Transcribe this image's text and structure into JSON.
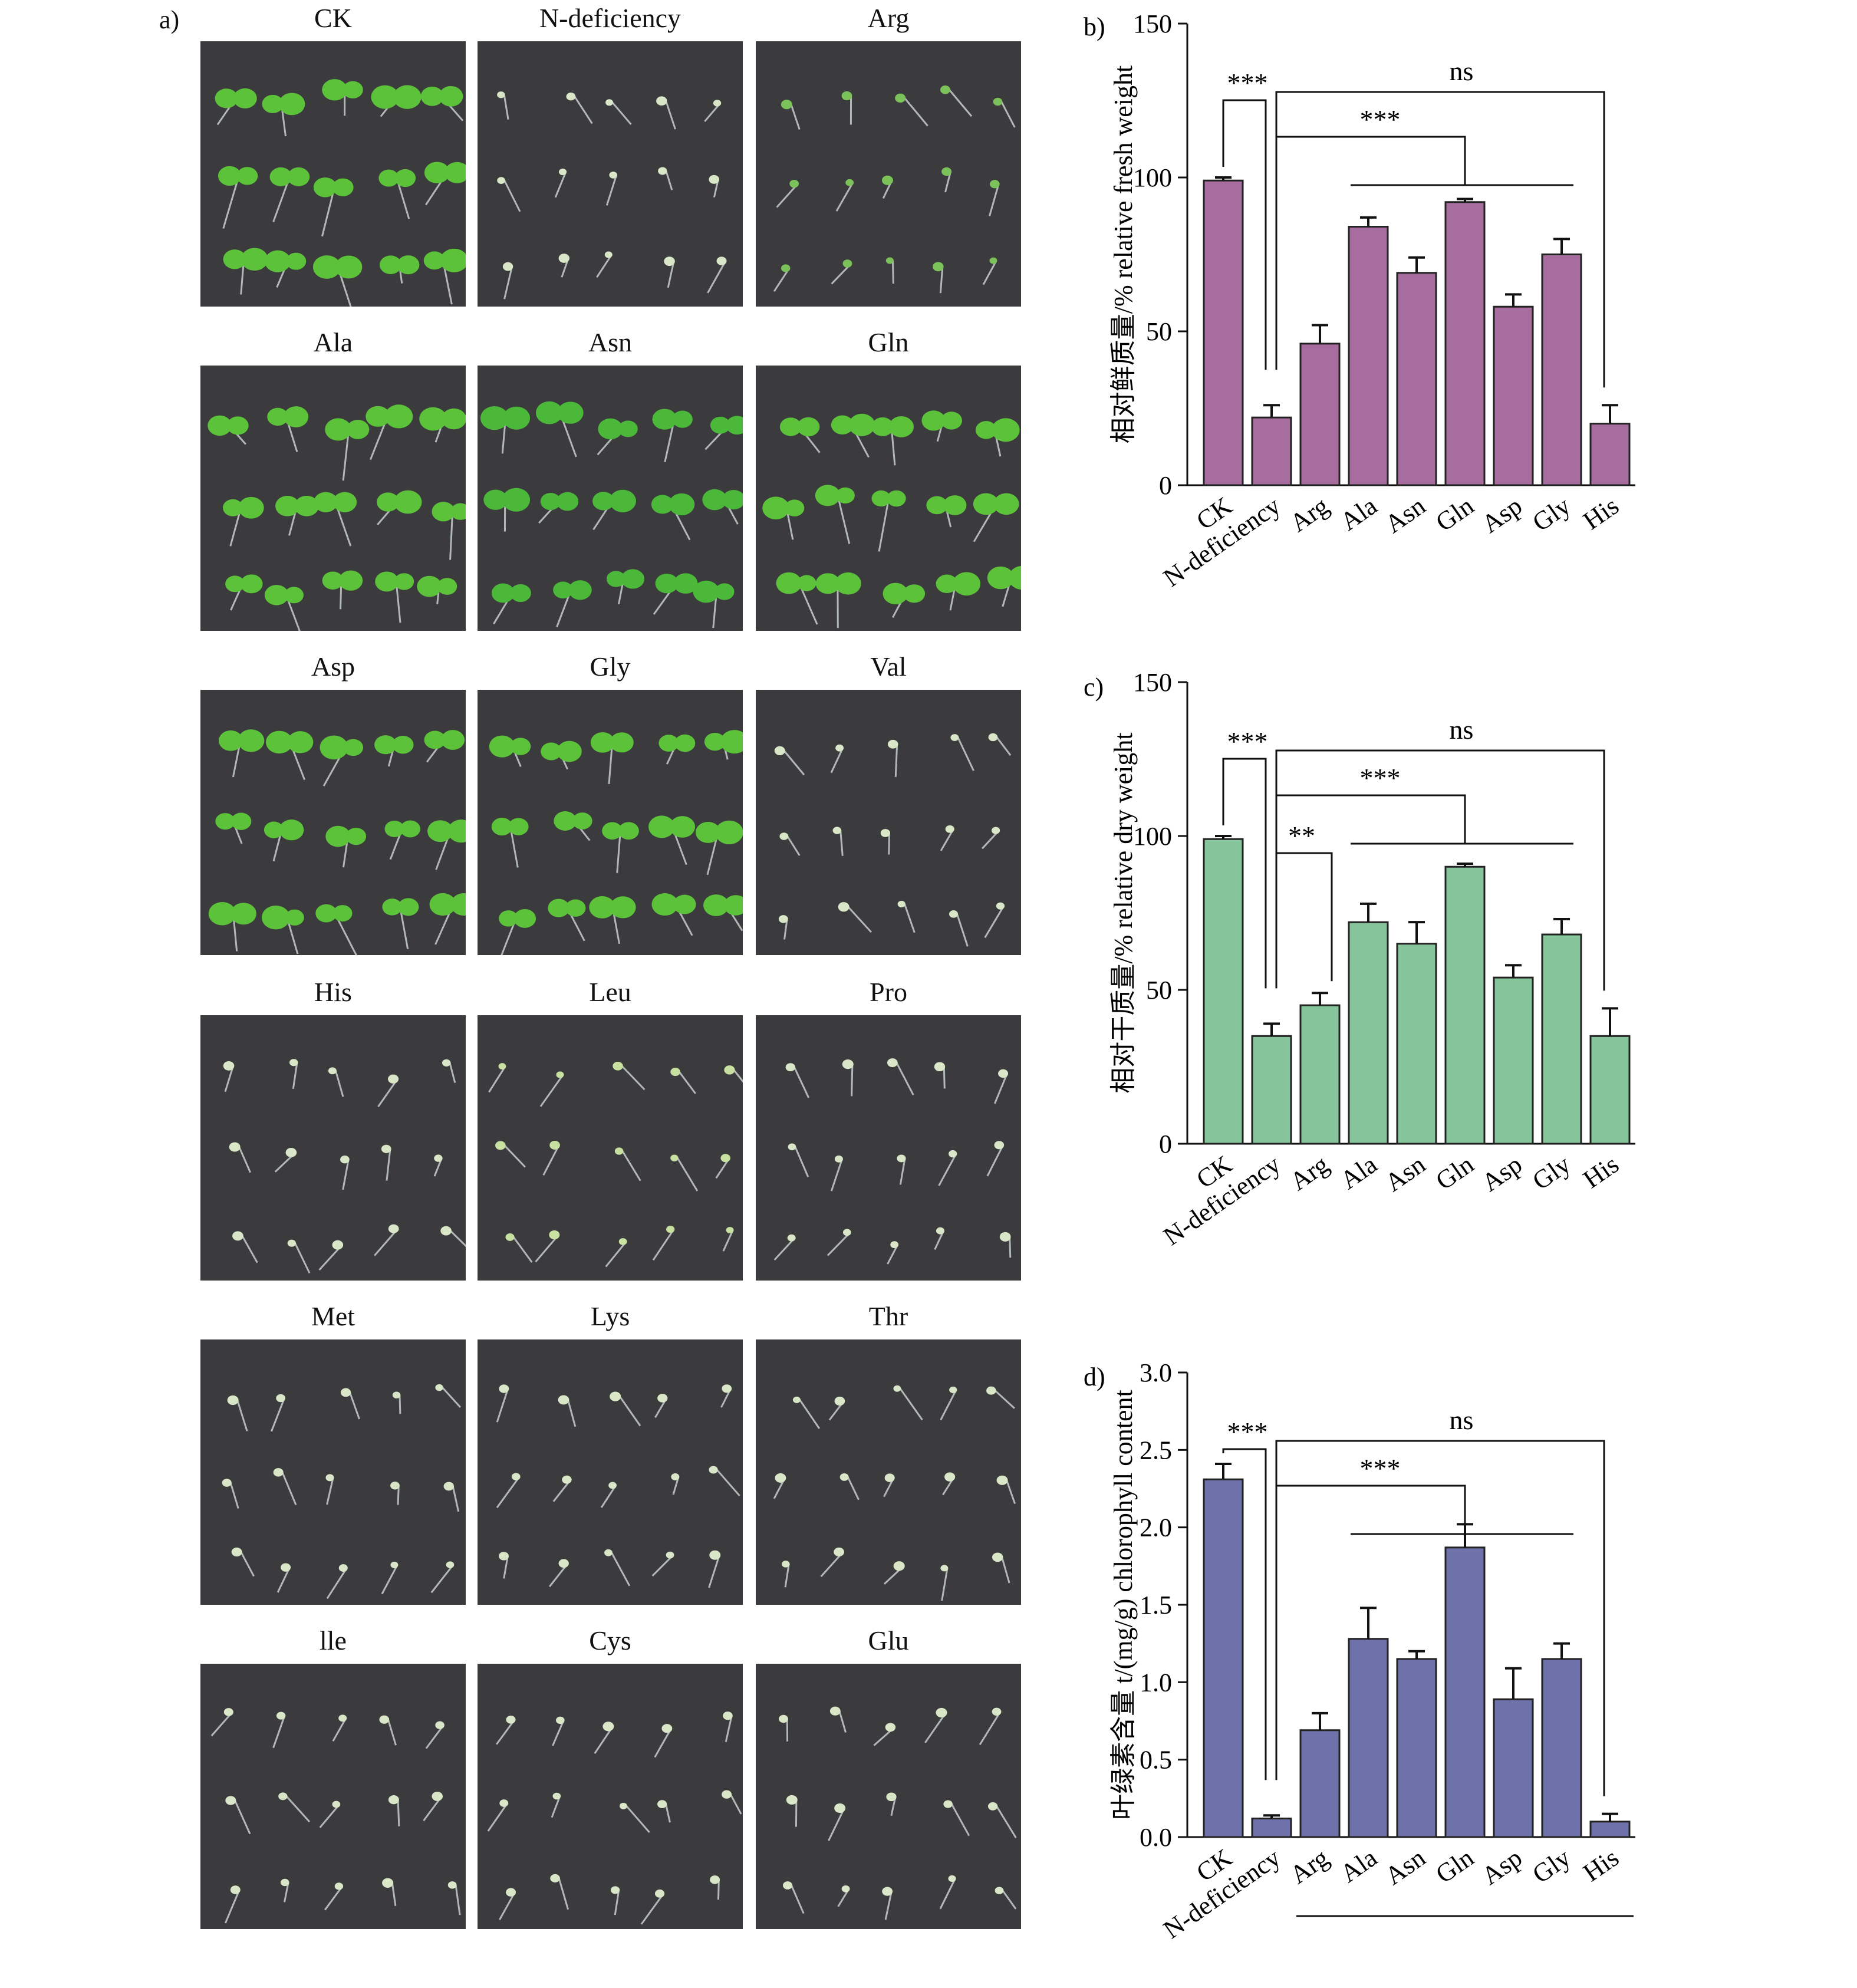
{
  "panel_a": {
    "letter": "a)",
    "tiles": [
      {
        "label": "CK",
        "seedling_color": "#5cc23a",
        "growth": "strong"
      },
      {
        "label": "N-deficiency",
        "seedling_color": "#d9e6c8",
        "growth": "weak"
      },
      {
        "label": "Arg",
        "seedling_color": "#7cc25a",
        "growth": "weak"
      },
      {
        "label": "Ala",
        "seedling_color": "#5cc23a",
        "growth": "strong"
      },
      {
        "label": "Asn",
        "seedling_color": "#4cb83a",
        "growth": "medium"
      },
      {
        "label": "Gln",
        "seedling_color": "#5cc23a",
        "growth": "strong"
      },
      {
        "label": "Asp",
        "seedling_color": "#5cc23a",
        "growth": "medium"
      },
      {
        "label": "Gly",
        "seedling_color": "#5cc23a",
        "growth": "medium"
      },
      {
        "label": "Val",
        "seedling_color": "#d9e6c8",
        "growth": "weak"
      },
      {
        "label": "His",
        "seedling_color": "#d9e6c8",
        "growth": "weak"
      },
      {
        "label": "Leu",
        "seedling_color": "#c8e0a0",
        "growth": "weak"
      },
      {
        "label": "Pro",
        "seedling_color": "#d9e6c8",
        "growth": "weak"
      },
      {
        "label": "Met",
        "seedling_color": "#d9e6c8",
        "growth": "weak"
      },
      {
        "label": "Lys",
        "seedling_color": "#d9e6c8",
        "growth": "weak"
      },
      {
        "label": "Thr",
        "seedling_color": "#d9e6c8",
        "growth": "weak"
      },
      {
        "label": "lle",
        "seedling_color": "#d9e6c8",
        "growth": "weak"
      },
      {
        "label": "Cys",
        "seedling_color": "#d9e6c8",
        "growth": "weak"
      },
      {
        "label": "Glu",
        "seedling_color": "#d9e6c8",
        "growth": "weak"
      }
    ]
  },
  "chart_data": [
    {
      "letter": "b)",
      "type": "bar",
      "ylabel": "相对鲜质量/% relative fresh weight",
      "categories": [
        "CK",
        "N-deficiency",
        "Arg",
        "Ala",
        "Asn",
        "Gln",
        "Asp",
        "Gly",
        "His"
      ],
      "values": [
        99,
        22,
        46,
        84,
        69,
        92,
        58,
        75,
        20
      ],
      "errors": [
        1,
        4,
        6,
        3,
        5,
        1,
        4,
        5,
        6
      ],
      "ylim": [
        0,
        150
      ],
      "yticks": [
        0,
        50,
        100,
        150
      ],
      "color": "#a66d9e",
      "significance": [
        {
          "from": 0,
          "to": 1,
          "text": "***"
        },
        {
          "from": 1,
          "to": "group",
          "group": [
            3,
            7
          ],
          "text": "***"
        },
        {
          "from": 1,
          "to": 8,
          "text": "ns"
        }
      ]
    },
    {
      "letter": "c)",
      "type": "bar",
      "ylabel": "相对干质量/% relative dry weight",
      "categories": [
        "CK",
        "N-deficiency",
        "Arg",
        "Ala",
        "Asn",
        "Gln",
        "Asp",
        "Gly",
        "His"
      ],
      "values": [
        99,
        35,
        45,
        72,
        65,
        90,
        54,
        68,
        35
      ],
      "errors": [
        1,
        4,
        4,
        6,
        7,
        1,
        4,
        5,
        9
      ],
      "ylim": [
        0,
        150
      ],
      "yticks": [
        0,
        50,
        100,
        150
      ],
      "color": "#86c49c",
      "significance": [
        {
          "from": 0,
          "to": 1,
          "text": "***"
        },
        {
          "from": 1,
          "to": 2,
          "text": "**"
        },
        {
          "from": 1,
          "to": "group",
          "group": [
            3,
            7
          ],
          "text": "***"
        },
        {
          "from": 1,
          "to": 8,
          "text": "ns"
        }
      ]
    },
    {
      "letter": "d)",
      "type": "bar",
      "ylabel": "叶绿素含量 t/(mg/g) chlorophyll content",
      "categories": [
        "CK",
        "N-deficiency",
        "Arg",
        "Ala",
        "Asn",
        "Gln",
        "Asp",
        "Gly",
        "His"
      ],
      "values": [
        2.31,
        0.12,
        0.69,
        1.28,
        1.15,
        1.87,
        0.89,
        1.15,
        0.1
      ],
      "errors": [
        0.1,
        0.02,
        0.11,
        0.2,
        0.05,
        0.15,
        0.2,
        0.1,
        0.05
      ],
      "ylim": [
        0,
        3.0
      ],
      "yticks": [
        "0.0",
        "0.5",
        "1.0",
        "1.5",
        "2.0",
        "2.5",
        "3.0"
      ],
      "color": "#6f71aa",
      "significance": [
        {
          "from": 0,
          "to": 1,
          "text": "***"
        },
        {
          "from": 1,
          "to": "group",
          "group": [
            3,
            7
          ],
          "text": "***"
        },
        {
          "from": 1,
          "to": 8,
          "text": "ns"
        }
      ]
    }
  ]
}
